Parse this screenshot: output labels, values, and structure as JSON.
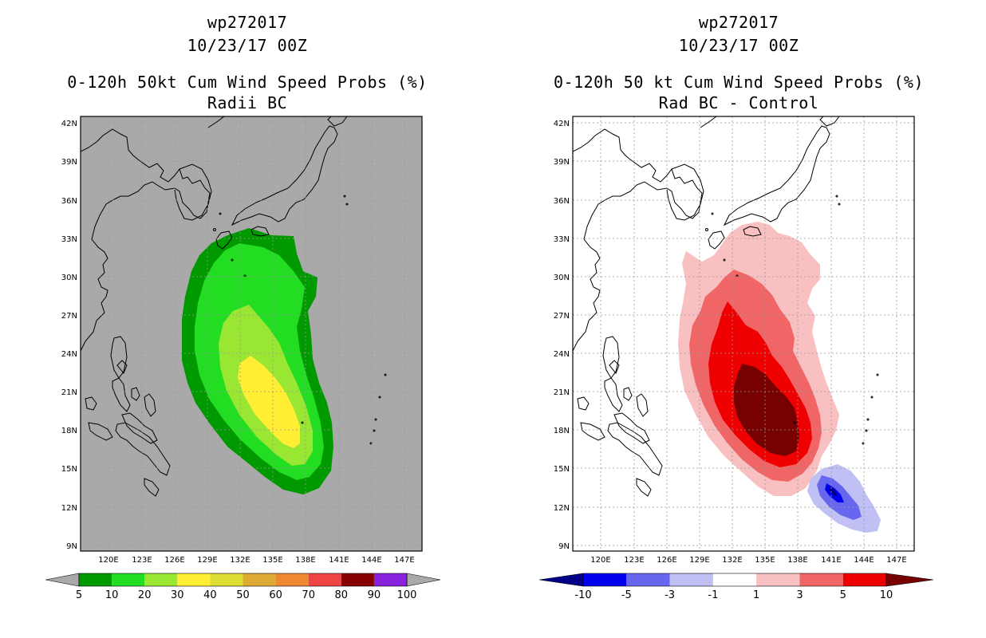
{
  "left_panel": {
    "title_lines": [
      "wp272017",
      "10/23/17 00Z",
      "0-120h 50kt Cum Wind Speed Probs (%)",
      "Radii BC"
    ],
    "background_color": "#a9a9a9",
    "lat_labels": [
      "42N",
      "39N",
      "36N",
      "33N",
      "30N",
      "27N",
      "24N",
      "21N",
      "18N",
      "15N",
      "12N",
      "9N"
    ],
    "lon_labels": [
      "120E",
      "123E",
      "126E",
      "129E",
      "132E",
      "135E",
      "138E",
      "141E",
      "144E",
      "147E"
    ],
    "colorbar": {
      "colors": [
        "#009900",
        "#22dd22",
        "#99e633",
        "#ffee33",
        "#dddd33",
        "#ddaa33",
        "#ee8833",
        "#ee4444",
        "#880000",
        "#8822dd"
      ],
      "labels": [
        "5",
        "10",
        "20",
        "30",
        "40",
        "50",
        "60",
        "70",
        "80",
        "90",
        "100"
      ],
      "under_color": "#a9a9a9",
      "over_color": "#a9a9a9"
    }
  },
  "right_panel": {
    "title_lines": [
      "wp272017",
      "10/23/17 00Z",
      "0-120h 50 kt Cum Wind Speed Probs (%)",
      "Rad BC - Control"
    ],
    "background_color": "#ffffff",
    "lat_labels": [
      "42N",
      "39N",
      "36N",
      "33N",
      "30N",
      "27N",
      "24N",
      "21N",
      "18N",
      "15N",
      "12N",
      "9N"
    ],
    "lon_labels": [
      "120E",
      "123E",
      "126E",
      "129E",
      "132E",
      "135E",
      "138E",
      "141E",
      "144E",
      "147E"
    ],
    "colorbar": {
      "colors": [
        "#0000ee",
        "#6666ee",
        "#c0c0f4",
        "#ffffff",
        "#f8c0c0",
        "#f06666",
        "#ee0000"
      ],
      "labels": [
        "-10",
        "-5",
        "-3",
        "-1",
        "1",
        "3",
        "5",
        "10"
      ],
      "under_color": "#000088",
      "over_color": "#770000"
    }
  }
}
